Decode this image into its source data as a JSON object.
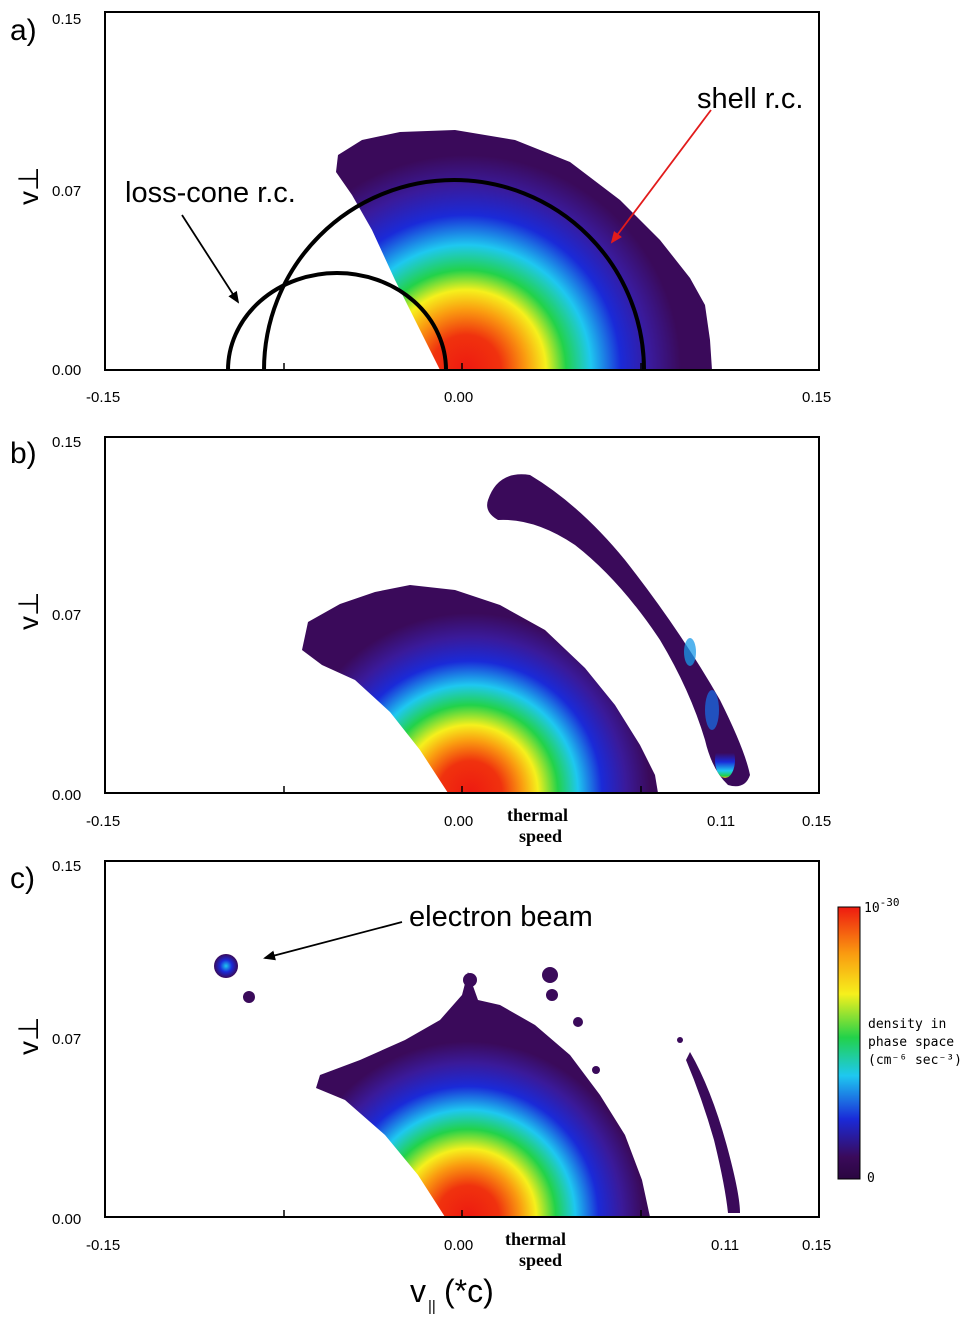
{
  "colors": {
    "deep_violet": "#3a0a5a",
    "blue": "#1a2ad8",
    "cyan": "#1ec8f0",
    "green": "#22d24a",
    "yellow": "#f6f01c",
    "orange": "#fa9a10",
    "red": "#ee1a10",
    "arrow_red": "#e21b1b",
    "axis": "#000000"
  },
  "axis_shared": {
    "x_ticks": [
      "-0.15",
      "0.00",
      "0.15"
    ],
    "y_ticks": [
      "0.15",
      "0.07",
      "0.00"
    ],
    "y_label": "v⊥",
    "x_title_main": "v",
    "x_title_sub": "||",
    "x_title_rest": "(*c)"
  },
  "panels": [
    {
      "id": "a",
      "letter": "a)",
      "annotations": [
        "loss-cone r.c.",
        "shell r.c."
      ]
    },
    {
      "id": "b",
      "letter": "b)",
      "extra_tick": "0.11",
      "thermal_line1": "thermal",
      "thermal_line2": "speed"
    },
    {
      "id": "c",
      "letter": "c)",
      "extra_tick": "0.11",
      "thermal_line1": "thermal",
      "thermal_line2": "speed",
      "annotation": "electron beam"
    }
  ],
  "colorbar": {
    "top_label_base": "10",
    "top_label_exp": "-30",
    "bottom_label": "0",
    "title_lines": [
      "density in",
      "phase space",
      "(cm⁻⁶ sec⁻³)"
    ]
  },
  "chart_data": [
    {
      "type": "heatmap",
      "panel": "a",
      "xlim": [
        -0.15,
        0.15
      ],
      "ylim": [
        0.0,
        0.15
      ],
      "x_ticks": [
        -0.15,
        0.0,
        0.15
      ],
      "y_ticks": [
        0.0,
        0.07,
        0.15
      ],
      "distribution": {
        "center_v_par": 0.005,
        "peak_region_radius": 0.04,
        "max_extent": 0.105,
        "loss_cone_edge_v_par": -0.045
      },
      "overlay_curves": [
        {
          "label": "loss-cone r.c.",
          "center_v_par": -0.052,
          "radius": 0.04
        },
        {
          "label": "shell r.c.",
          "center_v_par": 0.0,
          "radius": 0.08
        }
      ]
    },
    {
      "type": "heatmap",
      "panel": "b",
      "xlim": [
        -0.15,
        0.15
      ],
      "ylim": [
        0.0,
        0.15
      ],
      "x_ticks": [
        -0.15,
        0.0,
        0.11,
        0.15
      ],
      "y_ticks": [
        0.0,
        0.07,
        0.15
      ],
      "distribution": {
        "center_v_par": 0.005,
        "max_extent": 0.083
      },
      "shell_arc": {
        "v_par_at_base": 0.111,
        "top_point": [
          0.017,
          0.13
        ]
      }
    },
    {
      "type": "heatmap",
      "panel": "c",
      "xlim": [
        -0.15,
        0.15
      ],
      "ylim": [
        0.0,
        0.15
      ],
      "x_ticks": [
        -0.15,
        0.0,
        0.11,
        0.15
      ],
      "y_ticks": [
        0.0,
        0.07,
        0.15
      ],
      "distribution": {
        "center_v_par": 0.003,
        "max_extent": 0.08
      },
      "electron_beam": {
        "v_par": -0.1,
        "v_perp": 0.106
      },
      "shell_remnant_v_par": 0.11
    }
  ]
}
